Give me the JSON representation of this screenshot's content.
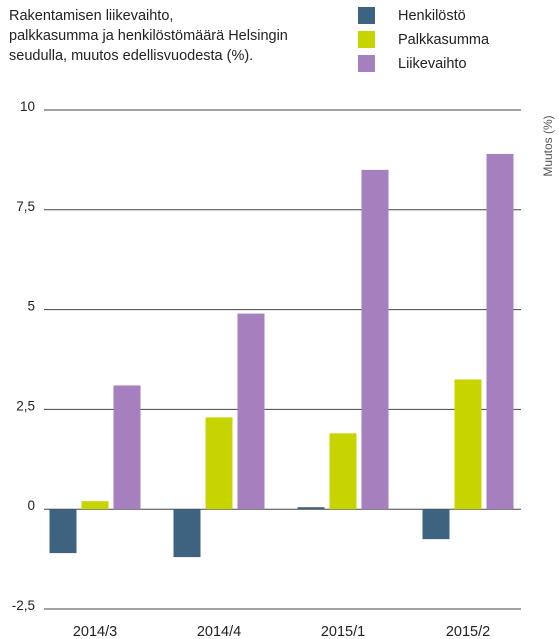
{
  "chart_data": {
    "type": "bar",
    "title_lines": [
      "Rakentamisen liikevaihto,",
      "palkkasumma ja henkilöstömäärä  Helsingin",
      "seudulla, muutos edellisvuodesta (%)."
    ],
    "ylabel": "Muutos  (%)",
    "xlabel": "",
    "ylim": [
      -2.5,
      10
    ],
    "yticks": [
      -2.5,
      0,
      2.5,
      5,
      7.5,
      10
    ],
    "ytick_labels": [
      "-2,5",
      "0",
      "2,5",
      "5",
      "7,5",
      "10"
    ],
    "grid": true,
    "legend_position": "top-right",
    "categories": [
      "2014/3",
      "2014/4",
      "2015/1",
      "2015/2"
    ],
    "series": [
      {
        "name": "Henkilöstö",
        "color": "#3d6380",
        "values": [
          -1.1,
          -1.2,
          0.05,
          -0.75
        ]
      },
      {
        "name": "Palkkasumma",
        "color": "#c8d400",
        "values": [
          0.2,
          2.3,
          1.9,
          3.25
        ]
      },
      {
        "name": "Liikevaihto",
        "color": "#a67fbe",
        "values": [
          3.1,
          4.9,
          8.5,
          8.9
        ]
      }
    ]
  }
}
